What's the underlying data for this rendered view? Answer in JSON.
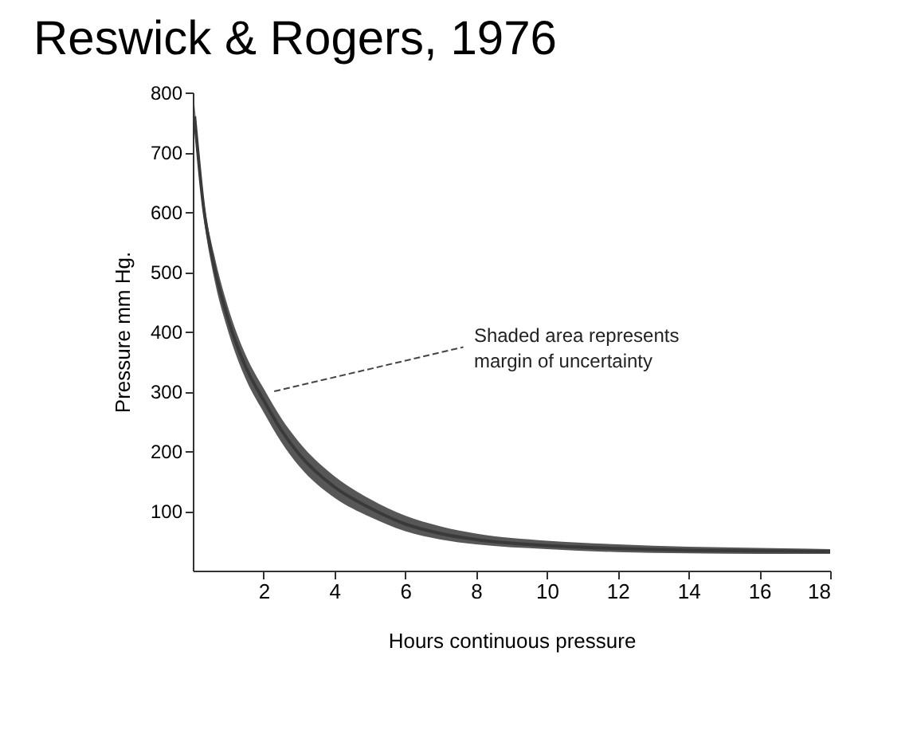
{
  "chart_data": {
    "type": "line",
    "title": "Reswick & Rogers, 1976",
    "xlabel": "Hours continuous pressure",
    "ylabel": "Pressure  mm Hg.",
    "x": [
      0.05,
      0.3,
      0.6,
      1,
      1.5,
      2,
      2.5,
      3,
      4,
      5,
      6,
      7,
      8,
      10,
      12,
      14,
      16,
      18
    ],
    "series": [
      {
        "color": "#3a3a3a",
        "values": [
          760,
          610,
          510,
          420,
          340,
          285,
          235,
          195,
          140,
          105,
          78,
          62,
          52,
          42,
          37,
          34,
          33,
          32
        ],
        "upper": [
          780,
          625,
          530,
          440,
          360,
          305,
          255,
          215,
          158,
          120,
          92,
          74,
          62,
          50,
          44,
          40,
          38,
          36
        ],
        "lower": [
          740,
          595,
          490,
          400,
          320,
          265,
          215,
          175,
          122,
          90,
          66,
          52,
          44,
          36,
          31,
          29,
          28,
          28
        ]
      }
    ],
    "xlim": [
      0,
      18
    ],
    "ylim": [
      0,
      800
    ],
    "xticks": [
      2,
      4,
      6,
      8,
      10,
      12,
      14,
      16,
      18
    ],
    "yticks": [
      100,
      200,
      300,
      400,
      500,
      600,
      700,
      800
    ],
    "annotations": [
      {
        "text": "Shaded area represents\nmargin of uncertainty",
        "x": 2,
        "y": 290
      }
    ],
    "grid": false,
    "marker": "none",
    "line_style": "solid"
  }
}
